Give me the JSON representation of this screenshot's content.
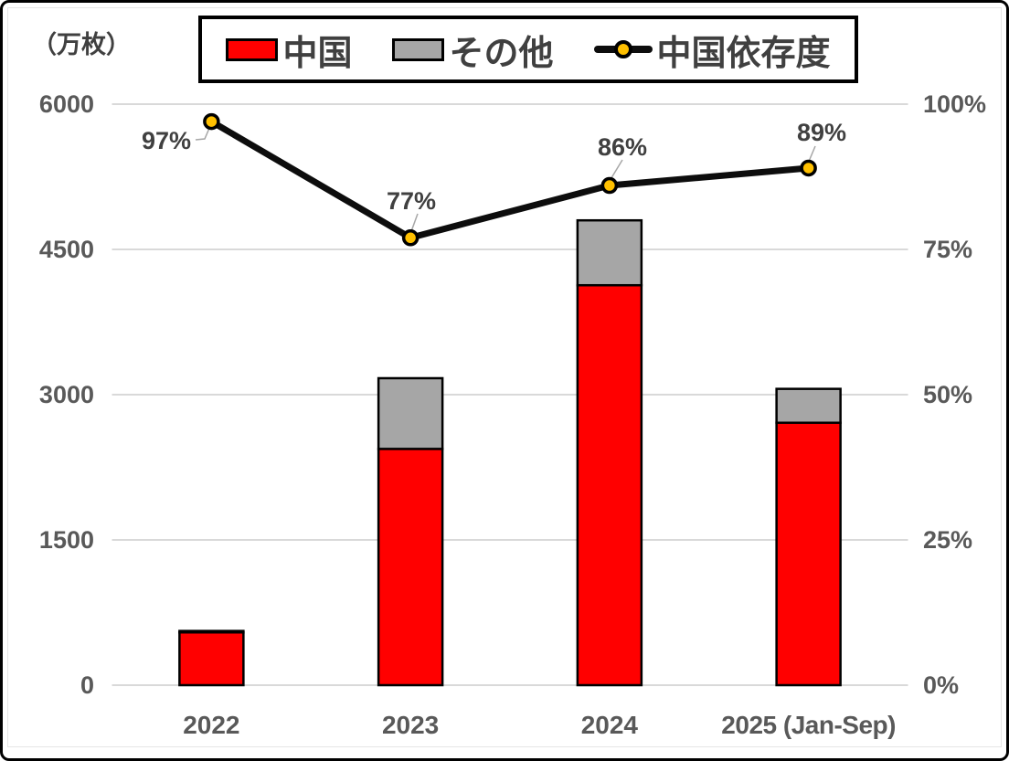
{
  "chart": {
    "unit_label": "（万枚）",
    "legend": [
      {
        "label": "中国",
        "color": "#FF0000"
      },
      {
        "label": "その他",
        "color": "#A6A6A6"
      },
      {
        "label": "中国依存度",
        "line_color": "#0D0D0D",
        "marker_color": "#FFC000"
      }
    ]
  },
  "chart_data": {
    "type": "bar",
    "subtype": "stacked-bars-with-line-overlay",
    "categories": [
      "2022",
      "2023",
      "2024",
      "2025 (Jan-Sep)"
    ],
    "series": [
      {
        "name": "中国",
        "key": "china",
        "type": "bar",
        "stacked": true,
        "color": "#FF0000",
        "border_color": "#000000",
        "values": [
          545,
          2440,
          4130,
          2710
        ]
      },
      {
        "name": "その他",
        "key": "other",
        "type": "bar",
        "stacked": true,
        "color": "#A6A6A6",
        "border_color": "#000000",
        "values": [
          15,
          730,
          670,
          350
        ]
      },
      {
        "name": "中国依存度",
        "key": "dependency",
        "type": "line",
        "axis": "right",
        "color": "#0D0D0D",
        "marker_color": "#FFC000",
        "values_percent": [
          97,
          77,
          86,
          89
        ],
        "labels": [
          "97%",
          "77%",
          "86%",
          "89%"
        ]
      }
    ],
    "left_axis": {
      "unit": "（万枚）",
      "min": 0,
      "max": 6000,
      "ticks": [
        "0",
        "1500",
        "3000",
        "4500",
        "6000"
      ]
    },
    "right_axis": {
      "min": 0,
      "max": 100,
      "ticks": [
        "0%",
        "25%",
        "50%",
        "75%",
        "100%"
      ]
    },
    "grid": true,
    "gridline_color": "#D9D9D9",
    "leader_color": "#A6A6A6",
    "legend_position": "top-center"
  }
}
